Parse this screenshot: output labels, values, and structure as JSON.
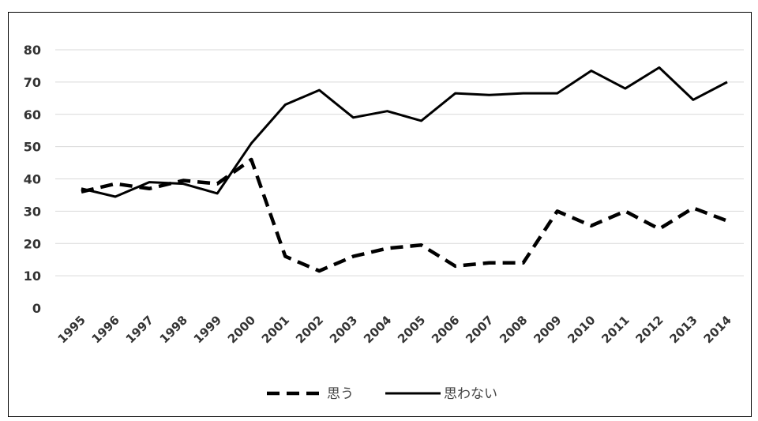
{
  "chart_data": {
    "type": "line",
    "categories": [
      "1995",
      "1996",
      "1997",
      "1998",
      "1999",
      "2000",
      "2001",
      "2002",
      "2003",
      "2004",
      "2005",
      "2006",
      "2007",
      "2008",
      "2009",
      "2010",
      "2011",
      "2012",
      "2013",
      "2014"
    ],
    "y_ticks": [
      "0",
      "10",
      "20",
      "30",
      "40",
      "50",
      "60",
      "70",
      "80"
    ],
    "ylim": [
      0,
      80
    ],
    "grid": true,
    "legend_position": "bottom",
    "series": [
      {
        "name": "思う",
        "style": "dashed",
        "values": [
          36,
          38.5,
          37,
          39.5,
          38.5,
          46,
          16,
          11.5,
          16,
          18.5,
          19.5,
          13,
          14,
          14,
          30,
          25.5,
          30,
          24.5,
          31,
          27
        ]
      },
      {
        "name": "思わない",
        "style": "solid",
        "values": [
          37,
          34.5,
          39,
          38.5,
          35.5,
          51,
          63,
          67.5,
          59,
          61,
          58,
          66.5,
          66,
          66.5,
          66.5,
          73.5,
          68,
          74.5,
          64.5,
          70
        ]
      }
    ],
    "colors": {
      "line": "#000000",
      "grid": "#d9d9d9",
      "text": "#333333"
    }
  }
}
